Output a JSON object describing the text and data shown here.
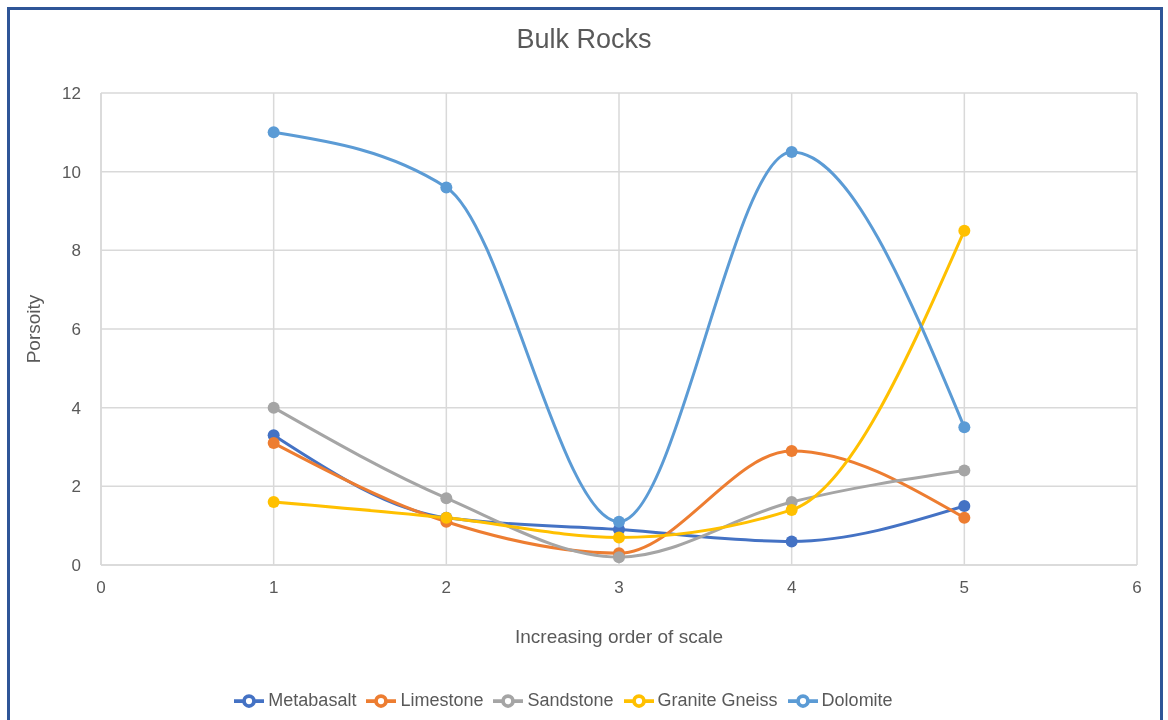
{
  "chart_data": {
    "type": "line",
    "title": "Bulk Rocks",
    "xlabel": "Increasing order of scale",
    "ylabel": "Porsoity",
    "x": [
      1,
      2,
      3,
      4,
      5
    ],
    "series": [
      {
        "name": "Metabasalt",
        "color": "#4472c4",
        "values": [
          3.3,
          1.2,
          0.9,
          0.6,
          1.5
        ]
      },
      {
        "name": "Limestone",
        "color": "#ed7d31",
        "values": [
          3.1,
          1.1,
          0.3,
          2.9,
          1.2
        ]
      },
      {
        "name": "Sandstone",
        "color": "#a5a5a5",
        "values": [
          4.0,
          1.7,
          0.2,
          1.6,
          2.4
        ]
      },
      {
        "name": "Granite Gneiss",
        "color": "#ffc000",
        "values": [
          1.6,
          1.2,
          0.7,
          1.4,
          8.5
        ]
      },
      {
        "name": "Dolomite",
        "color": "#5b9bd5",
        "values": [
          11.0,
          9.6,
          1.1,
          10.5,
          3.5
        ]
      }
    ],
    "xlim": [
      0,
      6
    ],
    "xticks": [
      0,
      1,
      2,
      3,
      4,
      5,
      6
    ],
    "ylim": [
      0,
      12
    ],
    "yticks": [
      0,
      2,
      4,
      6,
      8,
      10,
      12
    ],
    "grid": true,
    "legend": "bottom",
    "marker": "circle",
    "line_style": "solid"
  }
}
